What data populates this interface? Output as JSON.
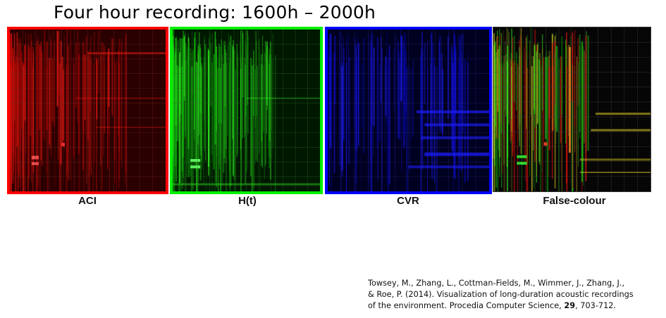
{
  "title": "Four hour recording: 1600h – 2000h",
  "panels": [
    {
      "label": "ACI",
      "color": "#ff0000",
      "channel": "red"
    },
    {
      "label": "H(t)",
      "color": "#00ee00",
      "channel": "green"
    },
    {
      "label": "CVR",
      "color": "#0000ff",
      "channel": "blue"
    },
    {
      "label": "False-colour",
      "color": "",
      "channel": "false-colour"
    }
  ],
  "citation": {
    "line1": "Towsey, M., Zhang, L., Cottman-Fields, M., Wimmer, J., Zhang, J.,",
    "line2": "& Roe, P. (2014). Visualization of long-duration acoustic recordings",
    "line3_pre": "of the environment. Procedia Computer Science, ",
    "volume": "29",
    "line3_post": ", 703-712."
  }
}
